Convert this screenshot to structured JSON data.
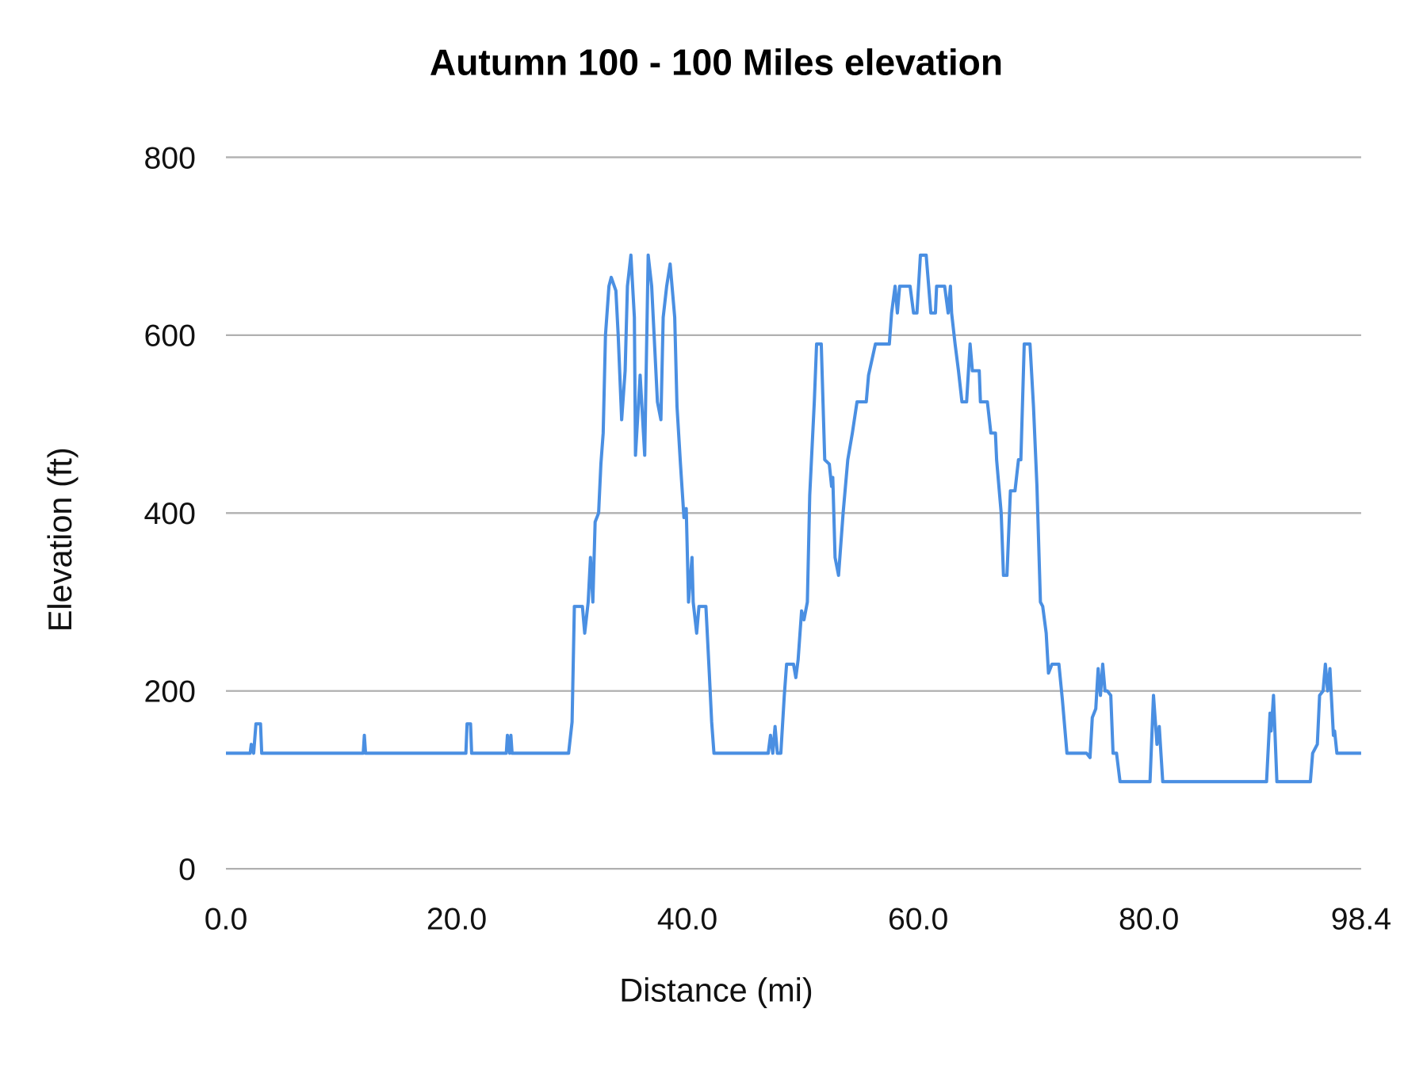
{
  "chart_data": {
    "type": "line",
    "title": "Autumn 100 - 100 Miles elevation",
    "xlabel": "Distance (mi)",
    "ylabel": "Elevation (ft)",
    "xlim": [
      0,
      98.4
    ],
    "ylim": [
      0,
      800
    ],
    "grid": true,
    "legend": "none",
    "x_ticks": [
      "0.0",
      "20.0",
      "40.0",
      "60.0",
      "80.0",
      "98.4"
    ],
    "x_tick_values": [
      0,
      20,
      40,
      60,
      80,
      98.4
    ],
    "y_ticks": [
      "0",
      "200",
      "400",
      "600",
      "800"
    ],
    "y_tick_values": [
      0,
      200,
      400,
      600,
      800
    ],
    "series": [
      {
        "name": "Elevation",
        "color": "#4a8fe2",
        "points": [
          [
            0,
            130
          ],
          [
            2.1,
            130
          ],
          [
            2.2,
            140
          ],
          [
            2.4,
            130
          ],
          [
            2.6,
            163
          ],
          [
            3.0,
            163
          ],
          [
            3.1,
            130
          ],
          [
            11.9,
            130
          ],
          [
            12.0,
            150
          ],
          [
            12.1,
            130
          ],
          [
            20.8,
            130
          ],
          [
            20.9,
            163
          ],
          [
            21.2,
            163
          ],
          [
            21.3,
            130
          ],
          [
            24.3,
            130
          ],
          [
            24.4,
            150
          ],
          [
            24.6,
            130
          ],
          [
            24.7,
            150
          ],
          [
            24.8,
            130
          ],
          [
            29.7,
            130
          ],
          [
            30.0,
            165
          ],
          [
            30.2,
            295
          ],
          [
            30.9,
            295
          ],
          [
            31.1,
            265
          ],
          [
            31.4,
            300
          ],
          [
            31.6,
            350
          ],
          [
            31.8,
            300
          ],
          [
            32.0,
            390
          ],
          [
            32.3,
            400
          ],
          [
            32.5,
            455
          ],
          [
            32.7,
            490
          ],
          [
            32.9,
            600
          ],
          [
            33.2,
            655
          ],
          [
            33.4,
            665
          ],
          [
            33.8,
            650
          ],
          [
            34.0,
            600
          ],
          [
            34.3,
            505
          ],
          [
            34.6,
            560
          ],
          [
            34.8,
            655
          ],
          [
            35.1,
            690
          ],
          [
            35.4,
            620
          ],
          [
            35.5,
            465
          ],
          [
            35.9,
            555
          ],
          [
            36.3,
            465
          ],
          [
            36.6,
            690
          ],
          [
            36.9,
            655
          ],
          [
            37.4,
            525
          ],
          [
            37.7,
            505
          ],
          [
            37.9,
            620
          ],
          [
            38.2,
            655
          ],
          [
            38.5,
            680
          ],
          [
            38.9,
            620
          ],
          [
            39.1,
            520
          ],
          [
            39.4,
            455
          ],
          [
            39.7,
            395
          ],
          [
            39.9,
            405
          ],
          [
            40.1,
            300
          ],
          [
            40.4,
            350
          ],
          [
            40.5,
            300
          ],
          [
            40.8,
            265
          ],
          [
            41.0,
            295
          ],
          [
            41.6,
            295
          ],
          [
            41.9,
            220
          ],
          [
            42.1,
            165
          ],
          [
            42.3,
            130
          ],
          [
            47.0,
            130
          ],
          [
            47.2,
            150
          ],
          [
            47.4,
            130
          ],
          [
            47.6,
            160
          ],
          [
            47.8,
            130
          ],
          [
            48.1,
            130
          ],
          [
            48.4,
            195
          ],
          [
            48.6,
            230
          ],
          [
            49.2,
            230
          ],
          [
            49.4,
            215
          ],
          [
            49.6,
            235
          ],
          [
            49.9,
            290
          ],
          [
            50.1,
            280
          ],
          [
            50.4,
            300
          ],
          [
            50.6,
            420
          ],
          [
            51.0,
            525
          ],
          [
            51.2,
            590
          ],
          [
            51.6,
            590
          ],
          [
            51.9,
            460
          ],
          [
            52.3,
            455
          ],
          [
            52.5,
            430
          ],
          [
            52.6,
            440
          ],
          [
            52.8,
            350
          ],
          [
            53.1,
            330
          ],
          [
            53.5,
            400
          ],
          [
            53.9,
            460
          ],
          [
            54.3,
            490
          ],
          [
            54.7,
            525
          ],
          [
            55.5,
            525
          ],
          [
            55.7,
            555
          ],
          [
            56.3,
            590
          ],
          [
            57.5,
            590
          ],
          [
            57.7,
            625
          ],
          [
            58.0,
            655
          ],
          [
            58.2,
            625
          ],
          [
            58.4,
            655
          ],
          [
            58.7,
            655
          ],
          [
            59.3,
            655
          ],
          [
            59.6,
            625
          ],
          [
            59.9,
            625
          ],
          [
            60.2,
            690
          ],
          [
            60.7,
            690
          ],
          [
            61.1,
            625
          ],
          [
            61.5,
            625
          ],
          [
            61.6,
            655
          ],
          [
            62.3,
            655
          ],
          [
            62.6,
            625
          ],
          [
            62.8,
            655
          ],
          [
            62.9,
            625
          ],
          [
            63.2,
            590
          ],
          [
            63.5,
            560
          ],
          [
            63.8,
            525
          ],
          [
            64.2,
            525
          ],
          [
            64.5,
            590
          ],
          [
            64.7,
            560
          ],
          [
            65.3,
            560
          ],
          [
            65.4,
            525
          ],
          [
            66.0,
            525
          ],
          [
            66.3,
            490
          ],
          [
            66.7,
            490
          ],
          [
            66.8,
            460
          ],
          [
            67.2,
            400
          ],
          [
            67.4,
            330
          ],
          [
            67.7,
            330
          ],
          [
            68.0,
            425
          ],
          [
            68.4,
            425
          ],
          [
            68.7,
            460
          ],
          [
            68.9,
            460
          ],
          [
            69.2,
            590
          ],
          [
            69.7,
            590
          ],
          [
            70.0,
            520
          ],
          [
            70.3,
            430
          ],
          [
            70.6,
            300
          ],
          [
            70.8,
            295
          ],
          [
            71.1,
            265
          ],
          [
            71.3,
            220
          ],
          [
            71.6,
            230
          ],
          [
            72.2,
            230
          ],
          [
            72.5,
            190
          ],
          [
            72.9,
            130
          ],
          [
            74.6,
            130
          ],
          [
            74.9,
            125
          ],
          [
            75.1,
            170
          ],
          [
            75.4,
            180
          ],
          [
            75.6,
            225
          ],
          [
            75.8,
            195
          ],
          [
            76.0,
            230
          ],
          [
            76.2,
            200
          ],
          [
            76.4,
            200
          ],
          [
            76.7,
            195
          ],
          [
            76.9,
            130
          ],
          [
            77.2,
            130
          ],
          [
            77.5,
            98
          ],
          [
            80.1,
            98
          ],
          [
            80.4,
            195
          ],
          [
            80.7,
            140
          ],
          [
            80.9,
            160
          ],
          [
            81.2,
            98
          ],
          [
            90.2,
            98
          ],
          [
            90.5,
            175
          ],
          [
            90.6,
            155
          ],
          [
            90.8,
            195
          ],
          [
            91.1,
            98
          ],
          [
            94.0,
            98
          ],
          [
            94.2,
            130
          ],
          [
            94.6,
            140
          ],
          [
            94.8,
            195
          ],
          [
            95.1,
            200
          ],
          [
            95.3,
            230
          ],
          [
            95.5,
            200
          ],
          [
            95.7,
            225
          ],
          [
            96.0,
            150
          ],
          [
            96.1,
            155
          ],
          [
            96.3,
            130
          ],
          [
            98.4,
            130
          ]
        ]
      }
    ]
  }
}
